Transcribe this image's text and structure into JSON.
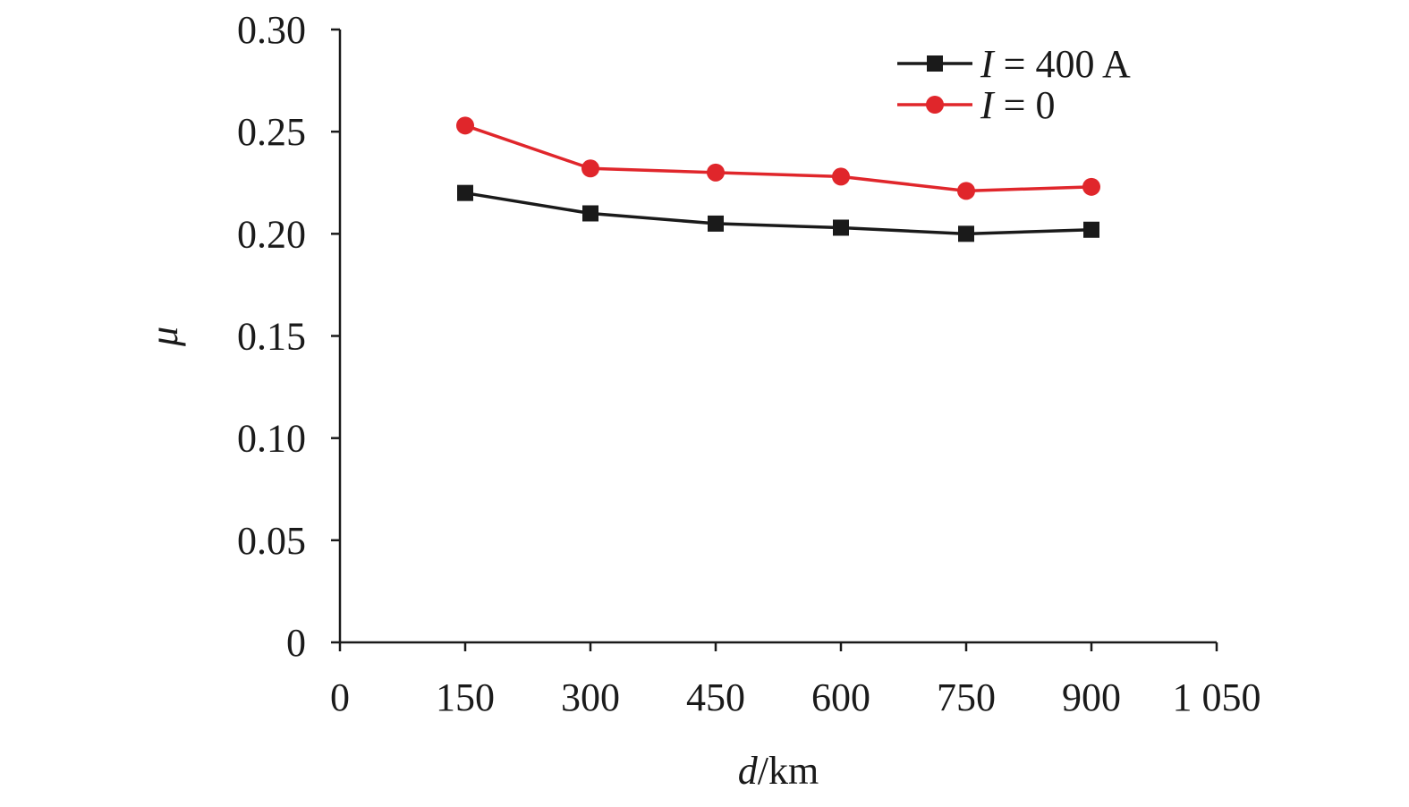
{
  "chart_data": {
    "type": "line",
    "x": [
      150,
      300,
      450,
      600,
      750,
      900
    ],
    "xlim": [
      0,
      1050
    ],
    "ylim": [
      0,
      0.3
    ],
    "x_ticks": [
      0,
      150,
      300,
      450,
      600,
      750,
      900,
      1050
    ],
    "x_tick_labels": [
      "0",
      "150",
      "300",
      "450",
      "600",
      "750",
      "900",
      "1 050"
    ],
    "y_ticks": [
      0,
      0.05,
      0.1,
      0.15,
      0.2,
      0.25,
      0.3
    ],
    "y_tick_labels": [
      "0",
      "0.05",
      "0.10",
      "0.15",
      "0.20",
      "0.25",
      "0.30"
    ],
    "xlabel": {
      "var": "d",
      "unit": "/km"
    },
    "ylabel": {
      "var": "μ"
    },
    "grid": false,
    "legend_position": "top-right",
    "series": [
      {
        "name": "I = 400 A",
        "name_var": "I",
        "name_rest": " = 400 A",
        "color": "#1a1a1a",
        "marker": "square",
        "values": [
          0.22,
          0.21,
          0.205,
          0.203,
          0.2,
          0.202
        ]
      },
      {
        "name": "I = 0",
        "name_var": "I",
        "name_rest": " = 0",
        "color": "#e0262b",
        "marker": "circle",
        "values": [
          0.253,
          0.232,
          0.23,
          0.228,
          0.221,
          0.223
        ]
      }
    ]
  }
}
